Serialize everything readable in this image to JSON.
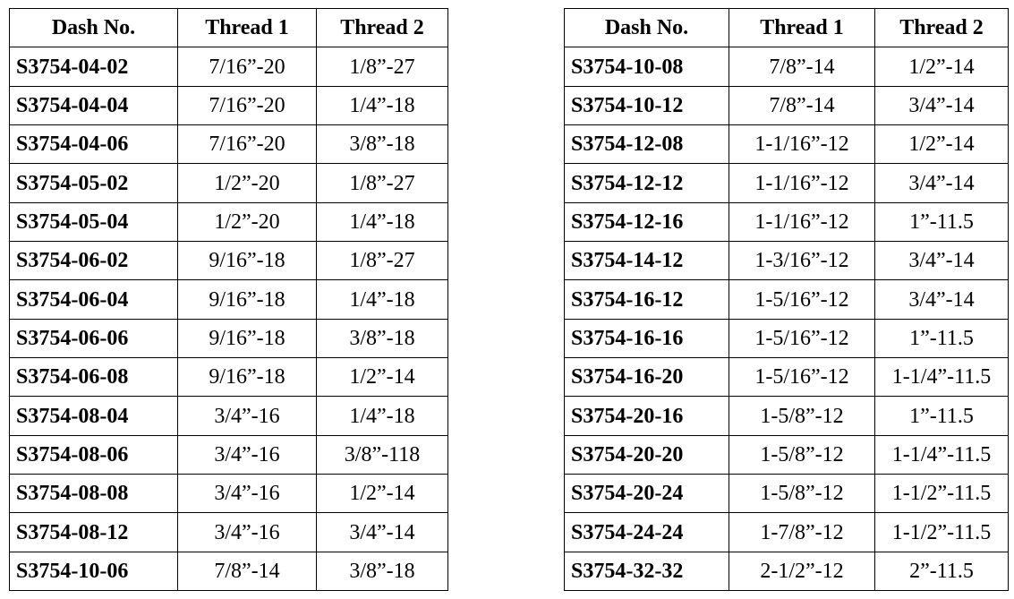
{
  "left_table": {
    "headers": [
      "Dash No.",
      "Thread 1",
      "Thread 2"
    ],
    "rows": [
      [
        "S3754-04-02",
        "7/16”-20",
        "1/8”-27"
      ],
      [
        "S3754-04-04",
        "7/16”-20",
        "1/4”-18"
      ],
      [
        "S3754-04-06",
        "7/16”-20",
        "3/8”-18"
      ],
      [
        "S3754-05-02",
        "1/2”-20",
        "1/8”-27"
      ],
      [
        "S3754-05-04",
        "1/2”-20",
        "1/4”-18"
      ],
      [
        "S3754-06-02",
        "9/16”-18",
        "1/8”-27"
      ],
      [
        "S3754-06-04",
        "9/16”-18",
        "1/4”-18"
      ],
      [
        "S3754-06-06",
        "9/16”-18",
        "3/8”-18"
      ],
      [
        "S3754-06-08",
        "9/16”-18",
        "1/2”-14"
      ],
      [
        "S3754-08-04",
        "3/4”-16",
        "1/4”-18"
      ],
      [
        "S3754-08-06",
        "3/4”-16",
        "3/8”-118"
      ],
      [
        "S3754-08-08",
        "3/4”-16",
        "1/2”-14"
      ],
      [
        "S3754-08-12",
        "3/4”-16",
        "3/4”-14"
      ],
      [
        "S3754-10-06",
        "7/8”-14",
        "3/8”-18"
      ]
    ]
  },
  "right_table": {
    "headers": [
      "Dash No.",
      "Thread 1",
      "Thread 2"
    ],
    "rows": [
      [
        "S3754-10-08",
        "7/8”-14",
        "1/2”-14"
      ],
      [
        "S3754-10-12",
        "7/8”-14",
        "3/4”-14"
      ],
      [
        "S3754-12-08",
        "1-1/16”-12",
        "1/2”-14"
      ],
      [
        "S3754-12-12",
        "1-1/16”-12",
        "3/4”-14"
      ],
      [
        "S3754-12-16",
        "1-1/16”-12",
        "1”-11.5"
      ],
      [
        "S3754-14-12",
        "1-3/16”-12",
        "3/4”-14"
      ],
      [
        "S3754-16-12",
        "1-5/16”-12",
        "3/4”-14"
      ],
      [
        "S3754-16-16",
        "1-5/16”-12",
        "1”-11.5"
      ],
      [
        "S3754-16-20",
        "1-5/16”-12",
        "1-1/4”-11.5"
      ],
      [
        "S3754-20-16",
        "1-5/8”-12",
        "1”-11.5"
      ],
      [
        "S3754-20-20",
        "1-5/8”-12",
        "1-1/4”-11.5"
      ],
      [
        "S3754-20-24",
        "1-5/8”-12",
        "1-1/2”-11.5"
      ],
      [
        "S3754-24-24",
        "1-7/8”-12",
        "1-1/2”-11.5"
      ],
      [
        "S3754-32-32",
        "2-1/2”-12",
        "2”-11.5"
      ]
    ]
  }
}
